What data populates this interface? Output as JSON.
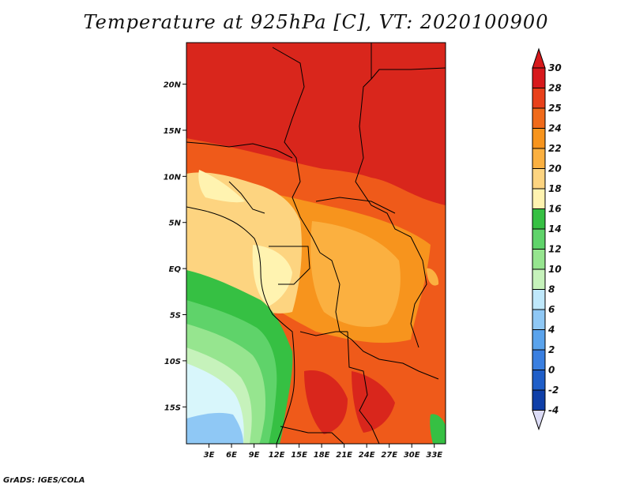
{
  "title": "Temperature at 925hPa [C], VT: 2020100900",
  "credit": "GrADS: IGES/COLA",
  "map": {
    "lat_labels": [
      "20N",
      "15N",
      "10N",
      "5N",
      "EQ",
      "5S",
      "10S",
      "15S"
    ],
    "lat_values": [
      20,
      15,
      10,
      5,
      0,
      -5,
      -10,
      -15
    ],
    "lon_labels": [
      "3E",
      "6E",
      "9E",
      "12E",
      "15E",
      "18E",
      "21E",
      "24E",
      "27E",
      "30E",
      "33E"
    ],
    "lon_values": [
      3,
      6,
      9,
      12,
      15,
      18,
      21,
      24,
      27,
      30,
      33
    ],
    "lat_range": [
      -19,
      24.5
    ],
    "lon_range": [
      0,
      34.5
    ]
  },
  "colorbar": {
    "levels": [
      "30",
      "28",
      "25",
      "24",
      "22",
      "20",
      "18",
      "16",
      "14",
      "12",
      "10",
      "8",
      "6",
      "4",
      "2",
      "0",
      "-2",
      "-4"
    ],
    "colors": [
      "#d7191c",
      "#e8401a",
      "#f06a1a",
      "#f7941d",
      "#fbb040",
      "#fdd480",
      "#fff3b0",
      "#36c043",
      "#5fd36a",
      "#96e58f",
      "#c6f2bb",
      "#bfe8fb",
      "#8fc8f5",
      "#5aa3ec",
      "#3a7fe0",
      "#1f5ec8",
      "#0f3fa8",
      "#081c6b"
    ],
    "top_arrow_color": "#d7191c",
    "bottom_arrow_color": "#dcdcf6"
  },
  "legend_colors": {
    "hot": "#d9261c",
    "warm": "#ef5a1a",
    "orange": "#f7941d",
    "light_orange": "#fbb040",
    "pale": "#fdd480",
    "cream": "#fff3b0",
    "green": "#36c043",
    "light_green": "#96e58f",
    "pale_cyan": "#d8f6fb",
    "sky": "#8fc8f5"
  }
}
